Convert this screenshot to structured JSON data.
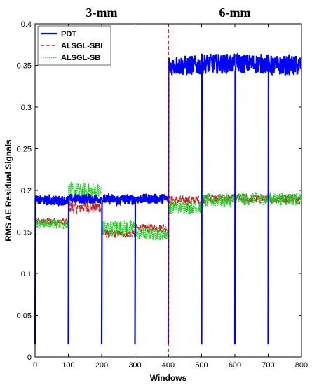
{
  "chart_data": {
    "type": "line",
    "title": "",
    "xlabel": "Windows",
    "ylabel": "RMS AE Residual Signals",
    "xlim": [
      0,
      800
    ],
    "ylim": [
      0,
      0.4
    ],
    "xticks": [
      0,
      100,
      200,
      300,
      400,
      500,
      600,
      700,
      800
    ],
    "xtick_labels": [
      "0",
      "100",
      "200",
      "300",
      "400",
      "500",
      "600",
      "700",
      "800"
    ],
    "yticks": [
      0,
      0.05,
      0.1,
      0.15,
      0.2,
      0.25,
      0.3,
      0.35,
      0.4
    ],
    "ytick_labels": [
      "0",
      "0.05",
      "0.1",
      "0.15",
      "0.2",
      "0.25",
      "0.3",
      "0.35",
      "0.4"
    ],
    "grid": false,
    "legend_position": "top-left",
    "region_labels": [
      {
        "text": "3-mm",
        "x": 200
      },
      {
        "text": "6-mm",
        "x": 600
      }
    ],
    "divider": {
      "x": 400,
      "color": "#8B1A1A"
    },
    "drop_value": 0.015,
    "series": [
      {
        "name": "PDT",
        "color": "#0000FF",
        "style": "solid",
        "segments": [
          {
            "x": [
              0,
              100
            ],
            "mean": 0.188,
            "noise": 0.006
          },
          {
            "x": [
              100,
              200
            ],
            "mean": 0.19,
            "noise": 0.006
          },
          {
            "x": [
              200,
              300
            ],
            "mean": 0.189,
            "noise": 0.006
          },
          {
            "x": [
              300,
              400
            ],
            "mean": 0.19,
            "noise": 0.006
          },
          {
            "x": [
              400,
              500
            ],
            "mean": 0.35,
            "noise": 0.012
          },
          {
            "x": [
              500,
              600
            ],
            "mean": 0.352,
            "noise": 0.012
          },
          {
            "x": [
              600,
              700
            ],
            "mean": 0.352,
            "noise": 0.012
          },
          {
            "x": [
              700,
              800
            ],
            "mean": 0.35,
            "noise": 0.012
          }
        ]
      },
      {
        "name": "ALSGL-SBI",
        "color": "#C0282B",
        "style": "dashed",
        "segments": [
          {
            "x": [
              0,
              100
            ],
            "mean": 0.162,
            "noise": 0.005
          },
          {
            "x": [
              100,
              200
            ],
            "mean": 0.18,
            "noise": 0.008
          },
          {
            "x": [
              200,
              300
            ],
            "mean": 0.148,
            "noise": 0.005
          },
          {
            "x": [
              300,
              400
            ],
            "mean": 0.155,
            "noise": 0.005
          },
          {
            "x": [
              400,
              500
            ],
            "mean": 0.188,
            "noise": 0.006
          },
          {
            "x": [
              500,
              600
            ],
            "mean": 0.19,
            "noise": 0.006
          },
          {
            "x": [
              600,
              700
            ],
            "mean": 0.19,
            "noise": 0.006
          },
          {
            "x": [
              700,
              800
            ],
            "mean": 0.19,
            "noise": 0.006
          }
        ]
      },
      {
        "name": "ALSGL-SB",
        "color": "#22CC22",
        "style": "dotted",
        "segments": [
          {
            "x": [
              0,
              100
            ],
            "mean": 0.16,
            "noise": 0.006
          },
          {
            "x": [
              100,
              200
            ],
            "mean": 0.198,
            "noise": 0.012
          },
          {
            "x": [
              200,
              300
            ],
            "mean": 0.155,
            "noise": 0.01
          },
          {
            "x": [
              300,
              400
            ],
            "mean": 0.148,
            "noise": 0.008
          },
          {
            "x": [
              400,
              500
            ],
            "mean": 0.18,
            "noise": 0.008
          },
          {
            "x": [
              500,
              600
            ],
            "mean": 0.188,
            "noise": 0.008
          },
          {
            "x": [
              600,
              700
            ],
            "mean": 0.19,
            "noise": 0.008
          },
          {
            "x": [
              700,
              800
            ],
            "mean": 0.19,
            "noise": 0.008
          }
        ]
      }
    ]
  }
}
